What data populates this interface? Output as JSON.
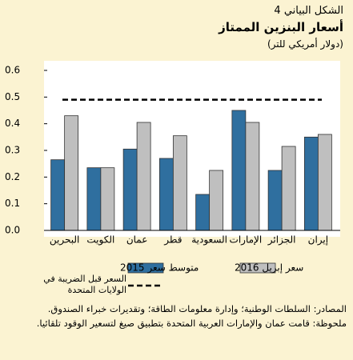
{
  "chart_data": {
    "type": "bar",
    "figure_label": "الشكل البياني 4",
    "title": "أسعار البنزين الممتاز",
    "subtitle": "(دولار أمريكي للتر)",
    "categories": [
      "البحرين",
      "الكويت",
      "عمان",
      "قطر",
      "السعودية",
      "الإمارات",
      "الجزائر",
      "إيران"
    ],
    "series": [
      {
        "name": "متوسط سعر 2015",
        "color": "#2f6f9f",
        "values": [
          0.265,
          0.235,
          0.305,
          0.27,
          0.135,
          0.45,
          0.225,
          0.35
        ]
      },
      {
        "name": "سعر إبريل 2016",
        "color": "#bfbfbf",
        "values": [
          0.43,
          0.235,
          0.405,
          0.355,
          0.225,
          0.405,
          0.315,
          0.36
        ]
      }
    ],
    "reference_line": {
      "name": "السعر قبل الضريبة في الولايات المتحدة",
      "value": 0.49,
      "color": "#000000"
    },
    "ylim": [
      0,
      0.6
    ],
    "yticks": [
      {
        "value": 0,
        "label": "0.0"
      },
      0.1,
      0.2,
      0.3,
      0.4,
      0.5,
      0.6
    ],
    "grid": false,
    "sources": "المصادر: السلطات الوطنية؛ وإدارة معلومات الطاقة؛ وتقديرات خبراء الصندوق.",
    "note": "ملحوظة: قامت عمان والإمارات العربية المتحدة بتطبيق صيغ لتسعير الوقود تلقائيا."
  }
}
